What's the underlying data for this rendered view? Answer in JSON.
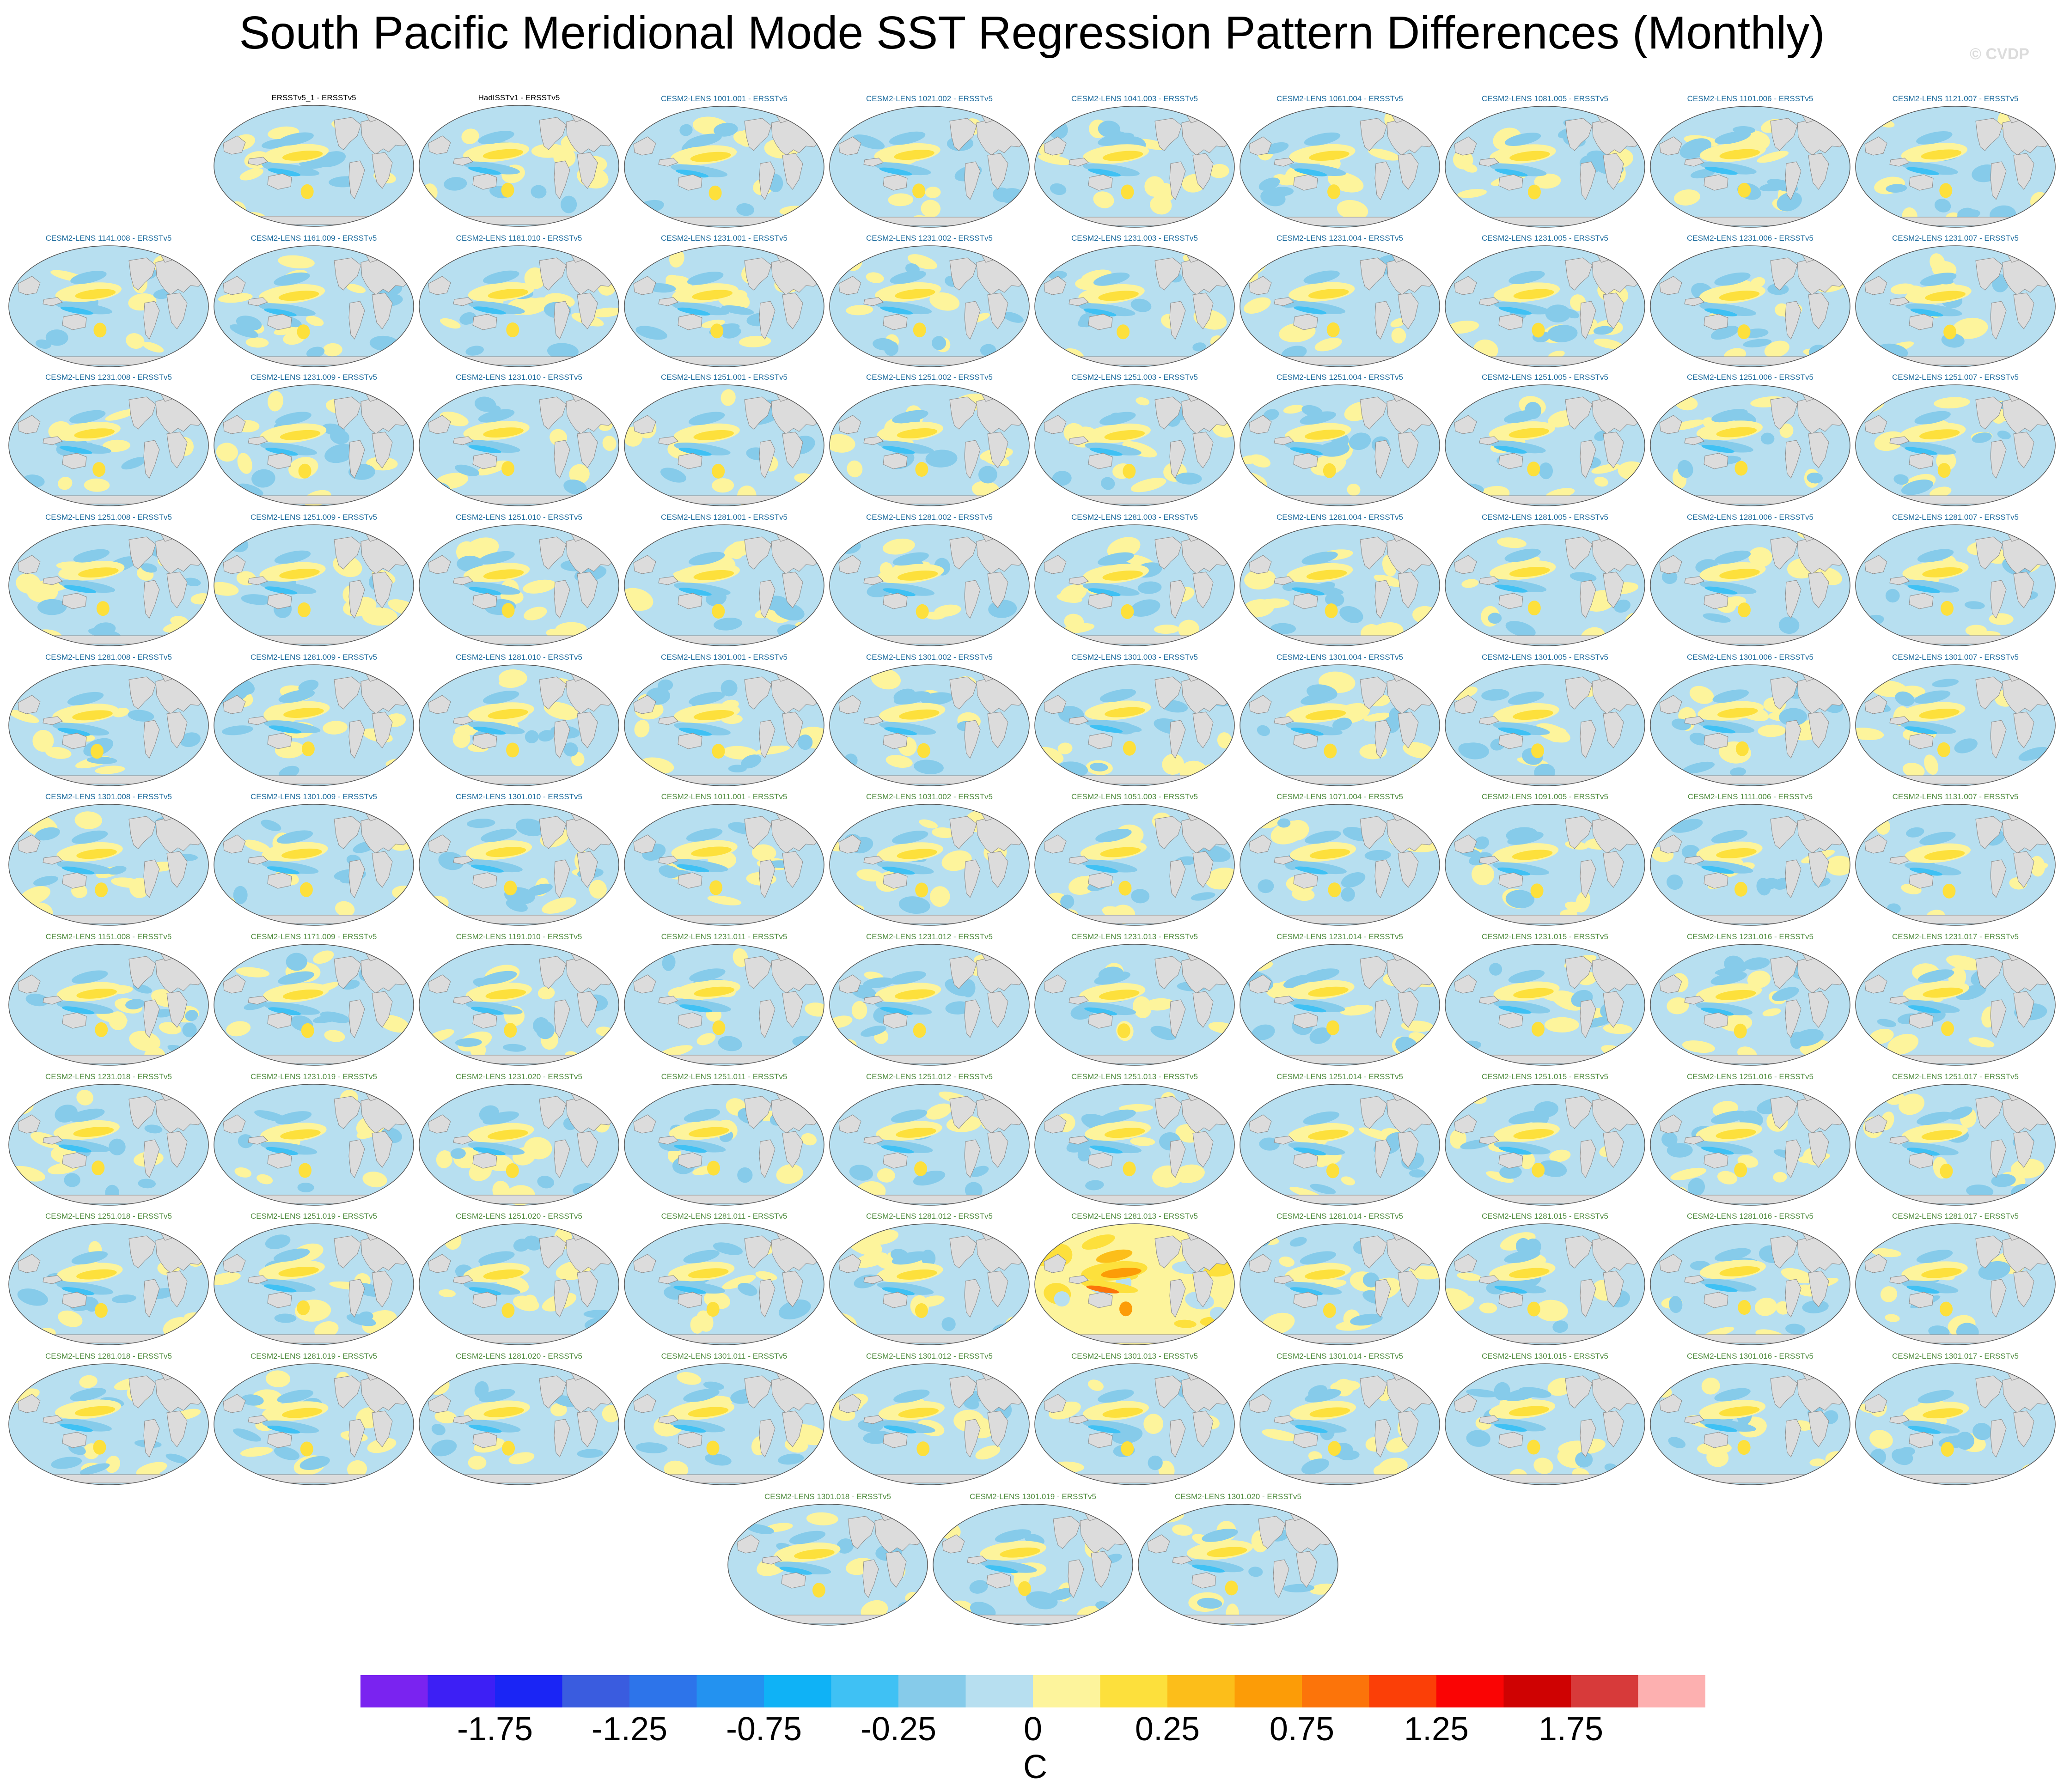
{
  "title": "South Pacific Meridional Mode SST Regression Pattern Differences (Monthly)",
  "watermark": "© CVDP",
  "colors": {
    "title_obs": "#000000",
    "title_set1": "#1a6a9c",
    "title_set2": "#4d8a3c",
    "land": "#dcdcdc",
    "coast": "#8a8a8a"
  },
  "chart_data": {
    "type": "contour-map-panels",
    "variable": "SST regression difference",
    "units": "C",
    "colorbar": {
      "levels": [
        -2.0,
        -1.75,
        -1.5,
        -1.25,
        -1.0,
        -0.75,
        -0.5,
        -0.25,
        -0.1,
        0,
        0.1,
        0.25,
        0.5,
        0.75,
        1.0,
        1.25,
        1.5,
        1.75,
        2.0
      ],
      "colors": [
        "#7a23f0",
        "#3d1ff5",
        "#1a25f5",
        "#3a5cdf",
        "#2d74ea",
        "#2392f0",
        "#0fb2f6",
        "#3fc1f4",
        "#86cbea",
        "#b7dff0",
        "#fdf49c",
        "#fde03c",
        "#fcbe1a",
        "#fc9c07",
        "#fc740a",
        "#fb3f07",
        "#fa0404",
        "#cf0202",
        "#d73a3a",
        "#fdb0b0"
      ],
      "tick_labels": [
        "-1.75",
        "-1.25",
        "-0.75",
        "-0.25",
        "0",
        "0.25",
        "0.75",
        "1.25",
        "1.75"
      ],
      "label": "C"
    },
    "panels": [
      {
        "title": "ERSSTv5_1 - ERSSTv5",
        "set": "obs"
      },
      {
        "title": "HadISSTv1 - ERSSTv5",
        "set": "obs"
      },
      {
        "title": "CESM2-LENS 1001.001 - ERSSTv5",
        "set": 1
      },
      {
        "title": "CESM2-LENS 1021.002 - ERSSTv5",
        "set": 1
      },
      {
        "title": "CESM2-LENS 1041.003 - ERSSTv5",
        "set": 1
      },
      {
        "title": "CESM2-LENS 1061.004 - ERSSTv5",
        "set": 1
      },
      {
        "title": "CESM2-LENS 1081.005 - ERSSTv5",
        "set": 1
      },
      {
        "title": "CESM2-LENS 1101.006 - ERSSTv5",
        "set": 1
      },
      {
        "title": "CESM2-LENS 1121.007 - ERSSTv5",
        "set": 1
      },
      {
        "title": "CESM2-LENS 1141.008 - ERSSTv5",
        "set": 1
      },
      {
        "title": "CESM2-LENS 1161.009 - ERSSTv5",
        "set": 1
      },
      {
        "title": "CESM2-LENS 1181.010 - ERSSTv5",
        "set": 1
      },
      {
        "title": "CESM2-LENS 1231.001 - ERSSTv5",
        "set": 1
      },
      {
        "title": "CESM2-LENS 1231.002 - ERSSTv5",
        "set": 1
      },
      {
        "title": "CESM2-LENS 1231.003 - ERSSTv5",
        "set": 1
      },
      {
        "title": "CESM2-LENS 1231.004 - ERSSTv5",
        "set": 1
      },
      {
        "title": "CESM2-LENS 1231.005 - ERSSTv5",
        "set": 1
      },
      {
        "title": "CESM2-LENS 1231.006 - ERSSTv5",
        "set": 1
      },
      {
        "title": "CESM2-LENS 1231.007 - ERSSTv5",
        "set": 1
      },
      {
        "title": "CESM2-LENS 1231.008 - ERSSTv5",
        "set": 1
      },
      {
        "title": "CESM2-LENS 1231.009 - ERSSTv5",
        "set": 1
      },
      {
        "title": "CESM2-LENS 1231.010 - ERSSTv5",
        "set": 1
      },
      {
        "title": "CESM2-LENS 1251.001 - ERSSTv5",
        "set": 1
      },
      {
        "title": "CESM2-LENS 1251.002 - ERSSTv5",
        "set": 1
      },
      {
        "title": "CESM2-LENS 1251.003 - ERSSTv5",
        "set": 1
      },
      {
        "title": "CESM2-LENS 1251.004 - ERSSTv5",
        "set": 1
      },
      {
        "title": "CESM2-LENS 1251.005 - ERSSTv5",
        "set": 1
      },
      {
        "title": "CESM2-LENS 1251.006 - ERSSTv5",
        "set": 1
      },
      {
        "title": "CESM2-LENS 1251.007 - ERSSTv5",
        "set": 1
      },
      {
        "title": "CESM2-LENS 1251.008 - ERSSTv5",
        "set": 1
      },
      {
        "title": "CESM2-LENS 1251.009 - ERSSTv5",
        "set": 1
      },
      {
        "title": "CESM2-LENS 1251.010 - ERSSTv5",
        "set": 1
      },
      {
        "title": "CESM2-LENS 1281.001 - ERSSTv5",
        "set": 1
      },
      {
        "title": "CESM2-LENS 1281.002 - ERSSTv5",
        "set": 1
      },
      {
        "title": "CESM2-LENS 1281.003 - ERSSTv5",
        "set": 1
      },
      {
        "title": "CESM2-LENS 1281.004 - ERSSTv5",
        "set": 1
      },
      {
        "title": "CESM2-LENS 1281.005 - ERSSTv5",
        "set": 1
      },
      {
        "title": "CESM2-LENS 1281.006 - ERSSTv5",
        "set": 1
      },
      {
        "title": "CESM2-LENS 1281.007 - ERSSTv5",
        "set": 1
      },
      {
        "title": "CESM2-LENS 1281.008 - ERSSTv5",
        "set": 1
      },
      {
        "title": "CESM2-LENS 1281.009 - ERSSTv5",
        "set": 1
      },
      {
        "title": "CESM2-LENS 1281.010 - ERSSTv5",
        "set": 1
      },
      {
        "title": "CESM2-LENS 1301.001 - ERSSTv5",
        "set": 1
      },
      {
        "title": "CESM2-LENS 1301.002 - ERSSTv5",
        "set": 1
      },
      {
        "title": "CESM2-LENS 1301.003 - ERSSTv5",
        "set": 1
      },
      {
        "title": "CESM2-LENS 1301.004 - ERSSTv5",
        "set": 1
      },
      {
        "title": "CESM2-LENS 1301.005 - ERSSTv5",
        "set": 1
      },
      {
        "title": "CESM2-LENS 1301.006 - ERSSTv5",
        "set": 1
      },
      {
        "title": "CESM2-LENS 1301.007 - ERSSTv5",
        "set": 1
      },
      {
        "title": "CESM2-LENS 1301.008 - ERSSTv5",
        "set": 1
      },
      {
        "title": "CESM2-LENS 1301.009 - ERSSTv5",
        "set": 1
      },
      {
        "title": "CESM2-LENS 1301.010 - ERSSTv5",
        "set": 1
      },
      {
        "title": "CESM2-LENS 1011.001 - ERSSTv5",
        "set": 2
      },
      {
        "title": "CESM2-LENS 1031.002 - ERSSTv5",
        "set": 2
      },
      {
        "title": "CESM2-LENS 1051.003 - ERSSTv5",
        "set": 2
      },
      {
        "title": "CESM2-LENS 1071.004 - ERSSTv5",
        "set": 2
      },
      {
        "title": "CESM2-LENS 1091.005 - ERSSTv5",
        "set": 2
      },
      {
        "title": "CESM2-LENS 1111.006 - ERSSTv5",
        "set": 2
      },
      {
        "title": "CESM2-LENS 1131.007 - ERSSTv5",
        "set": 2
      },
      {
        "title": "CESM2-LENS 1151.008 - ERSSTv5",
        "set": 2
      },
      {
        "title": "CESM2-LENS 1171.009 - ERSSTv5",
        "set": 2
      },
      {
        "title": "CESM2-LENS 1191.010 - ERSSTv5",
        "set": 2
      },
      {
        "title": "CESM2-LENS 1231.011 - ERSSTv5",
        "set": 2
      },
      {
        "title": "CESM2-LENS 1231.012 - ERSSTv5",
        "set": 2
      },
      {
        "title": "CESM2-LENS 1231.013 - ERSSTv5",
        "set": 2
      },
      {
        "title": "CESM2-LENS 1231.014 - ERSSTv5",
        "set": 2
      },
      {
        "title": "CESM2-LENS 1231.015 - ERSSTv5",
        "set": 2
      },
      {
        "title": "CESM2-LENS 1231.016 - ERSSTv5",
        "set": 2
      },
      {
        "title": "CESM2-LENS 1231.017 - ERSSTv5",
        "set": 2
      },
      {
        "title": "CESM2-LENS 1231.018 - ERSSTv5",
        "set": 2
      },
      {
        "title": "CESM2-LENS 1231.019 - ERSSTv5",
        "set": 2
      },
      {
        "title": "CESM2-LENS 1231.020 - ERSSTv5",
        "set": 2
      },
      {
        "title": "CESM2-LENS 1251.011 - ERSSTv5",
        "set": 2
      },
      {
        "title": "CESM2-LENS 1251.012 - ERSSTv5",
        "set": 2
      },
      {
        "title": "CESM2-LENS 1251.013 - ERSSTv5",
        "set": 2
      },
      {
        "title": "CESM2-LENS 1251.014 - ERSSTv5",
        "set": 2
      },
      {
        "title": "CESM2-LENS 1251.015 - ERSSTv5",
        "set": 2
      },
      {
        "title": "CESM2-LENS 1251.016 - ERSSTv5",
        "set": 2
      },
      {
        "title": "CESM2-LENS 1251.017 - ERSSTv5",
        "set": 2
      },
      {
        "title": "CESM2-LENS 1251.018 - ERSSTv5",
        "set": 2
      },
      {
        "title": "CESM2-LENS 1251.019 - ERSSTv5",
        "set": 2
      },
      {
        "title": "CESM2-LENS 1251.020 - ERSSTv5",
        "set": 2
      },
      {
        "title": "CESM2-LENS 1281.011 - ERSSTv5",
        "set": 2
      },
      {
        "title": "CESM2-LENS 1281.012 - ERSSTv5",
        "set": 2
      },
      {
        "title": "CESM2-LENS 1281.013 - ERSSTv5",
        "set": 2,
        "highlight": true
      },
      {
        "title": "CESM2-LENS 1281.014 - ERSSTv5",
        "set": 2
      },
      {
        "title": "CESM2-LENS 1281.015 - ERSSTv5",
        "set": 2
      },
      {
        "title": "CESM2-LENS 1281.016 - ERSSTv5",
        "set": 2
      },
      {
        "title": "CESM2-LENS 1281.017 - ERSSTv5",
        "set": 2
      },
      {
        "title": "CESM2-LENS 1281.018 - ERSSTv5",
        "set": 2
      },
      {
        "title": "CESM2-LENS 1281.019 - ERSSTv5",
        "set": 2
      },
      {
        "title": "CESM2-LENS 1281.020 - ERSSTv5",
        "set": 2
      },
      {
        "title": "CESM2-LENS 1301.011 - ERSSTv5",
        "set": 2
      },
      {
        "title": "CESM2-LENS 1301.012 - ERSSTv5",
        "set": 2
      },
      {
        "title": "CESM2-LENS 1301.013 - ERSSTv5",
        "set": 2
      },
      {
        "title": "CESM2-LENS 1301.014 - ERSSTv5",
        "set": 2
      },
      {
        "title": "CESM2-LENS 1301.015 - ERSSTv5",
        "set": 2
      },
      {
        "title": "CESM2-LENS 1301.016 - ERSSTv5",
        "set": 2
      },
      {
        "title": "CESM2-LENS 1301.017 - ERSSTv5",
        "set": 2
      },
      {
        "title": "CESM2-LENS 1301.018 - ERSSTv5",
        "set": 2
      },
      {
        "title": "CESM2-LENS 1301.019 - ERSSTv5",
        "set": 2
      },
      {
        "title": "CESM2-LENS 1301.020 - ERSSTv5",
        "set": 2
      }
    ]
  }
}
